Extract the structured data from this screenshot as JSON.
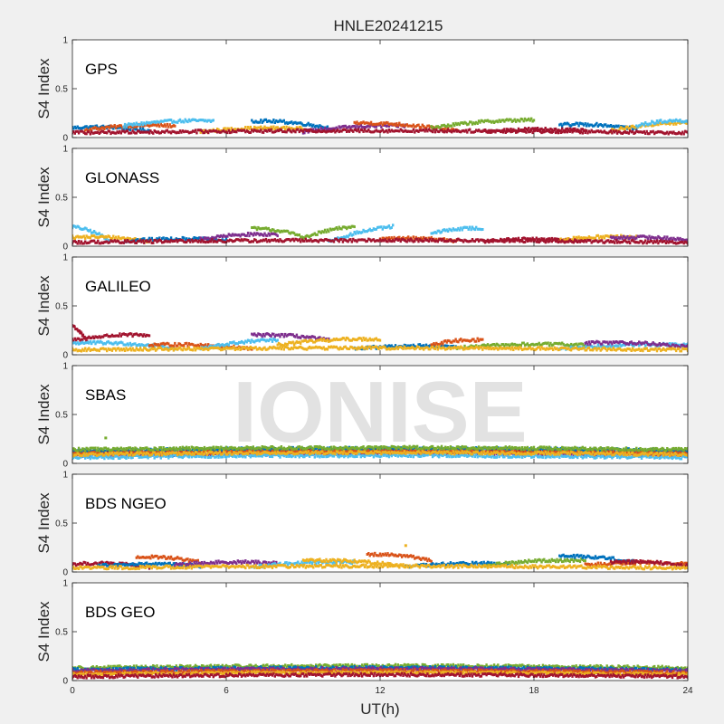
{
  "figure": {
    "title": "HNLE20241215",
    "watermark": "IONISE",
    "xlabel": "UT(h)",
    "background": "#f0f0f0",
    "axes_background": "#ffffff",
    "series_colors": [
      "#0072BD",
      "#D95319",
      "#EDB120",
      "#7E2F8E",
      "#77AC30",
      "#4DBEEE",
      "#A2142F"
    ]
  },
  "chart_data": [
    {
      "type": "scatter",
      "label": "GPS",
      "ylabel": "S4 Index",
      "xlim": [
        0,
        24
      ],
      "ylim": [
        0,
        1
      ],
      "xticks": [
        0,
        6,
        12,
        18,
        24
      ],
      "yticks": [
        0,
        0.5,
        1
      ],
      "grid": false,
      "segments": [
        {
          "x0": 0,
          "x1": 3,
          "y0": 0.1,
          "y1": 0.07,
          "color": 0
        },
        {
          "x0": 0.5,
          "x1": 4,
          "y0": 0.08,
          "y1": 0.12,
          "color": 1
        },
        {
          "x0": 2,
          "x1": 5.5,
          "y0": 0.12,
          "y1": 0.17,
          "color": 5
        },
        {
          "x0": 5,
          "x1": 9,
          "y0": 0.06,
          "y1": 0.09,
          "color": 2
        },
        {
          "x0": 7,
          "x1": 10,
          "y0": 0.17,
          "y1": 0.1,
          "color": 0
        },
        {
          "x0": 9,
          "x1": 13,
          "y0": 0.06,
          "y1": 0.12,
          "color": 3
        },
        {
          "x0": 11,
          "x1": 15,
          "y0": 0.15,
          "y1": 0.07,
          "color": 1
        },
        {
          "x0": 14,
          "x1": 18,
          "y0": 0.1,
          "y1": 0.18,
          "color": 4
        },
        {
          "x0": 16,
          "x1": 20,
          "y0": 0.06,
          "y1": 0.07,
          "color": 6
        },
        {
          "x0": 19,
          "x1": 22,
          "y0": 0.13,
          "y1": 0.09,
          "color": 0
        },
        {
          "x0": 21,
          "x1": 24,
          "y0": 0.07,
          "y1": 0.15,
          "color": 2
        },
        {
          "x0": 22,
          "x1": 24,
          "y0": 0.12,
          "y1": 0.17,
          "color": 5
        },
        {
          "x0": 0,
          "x1": 24,
          "y0": 0.05,
          "y1": 0.05,
          "color": 6
        }
      ]
    },
    {
      "type": "scatter",
      "label": "GLONASS",
      "ylabel": "S4 Index",
      "xlim": [
        0,
        24
      ],
      "ylim": [
        0,
        1
      ],
      "xticks": [
        0,
        6,
        12,
        18,
        24
      ],
      "yticks": [
        0,
        0.5,
        1
      ],
      "grid": false,
      "segments": [
        {
          "x0": 0,
          "x1": 1.5,
          "y0": 0.2,
          "y1": 0.06,
          "color": 5
        },
        {
          "x0": 0,
          "x1": 3,
          "y0": 0.09,
          "y1": 0.05,
          "color": 2
        },
        {
          "x0": 2,
          "x1": 6,
          "y0": 0.05,
          "y1": 0.06,
          "color": 0
        },
        {
          "x0": 5,
          "x1": 8,
          "y0": 0.07,
          "y1": 0.12,
          "color": 3
        },
        {
          "x0": 7,
          "x1": 9,
          "y0": 0.18,
          "y1": 0.1,
          "color": 4
        },
        {
          "x0": 9,
          "x1": 11,
          "y0": 0.08,
          "y1": 0.2,
          "color": 4
        },
        {
          "x0": 10,
          "x1": 12.5,
          "y0": 0.05,
          "y1": 0.2,
          "color": 5
        },
        {
          "x0": 12,
          "x1": 15,
          "y0": 0.07,
          "y1": 0.05,
          "color": 1
        },
        {
          "x0": 14,
          "x1": 16,
          "y0": 0.13,
          "y1": 0.18,
          "color": 5
        },
        {
          "x0": 16,
          "x1": 20,
          "y0": 0.05,
          "y1": 0.05,
          "color": 6
        },
        {
          "x0": 19,
          "x1": 22,
          "y0": 0.06,
          "y1": 0.09,
          "color": 2
        },
        {
          "x0": 21,
          "x1": 24,
          "y0": 0.08,
          "y1": 0.06,
          "color": 3
        },
        {
          "x0": 0,
          "x1": 24,
          "y0": 0.04,
          "y1": 0.04,
          "color": 6
        }
      ]
    },
    {
      "type": "scatter",
      "label": "GALILEO",
      "ylabel": "S4 Index",
      "xlim": [
        0,
        24
      ],
      "ylim": [
        0,
        1
      ],
      "xticks": [
        0,
        6,
        12,
        18,
        24
      ],
      "yticks": [
        0,
        0.5,
        1
      ],
      "grid": false,
      "segments": [
        {
          "x0": 0,
          "x1": 0.6,
          "y0": 0.3,
          "y1": 0.12,
          "color": 6
        },
        {
          "x0": 0,
          "x1": 3,
          "y0": 0.15,
          "y1": 0.2,
          "color": 6
        },
        {
          "x0": 0,
          "x1": 4,
          "y0": 0.12,
          "y1": 0.07,
          "color": 5
        },
        {
          "x0": 3,
          "x1": 7,
          "y0": 0.1,
          "y1": 0.06,
          "color": 1
        },
        {
          "x0": 5,
          "x1": 8,
          "y0": 0.06,
          "y1": 0.15,
          "color": 5
        },
        {
          "x0": 7,
          "x1": 10,
          "y0": 0.2,
          "y1": 0.15,
          "color": 3
        },
        {
          "x0": 8,
          "x1": 12,
          "y0": 0.1,
          "y1": 0.16,
          "color": 2
        },
        {
          "x0": 11,
          "x1": 15,
          "y0": 0.06,
          "y1": 0.08,
          "color": 0
        },
        {
          "x0": 14,
          "x1": 16,
          "y0": 0.1,
          "y1": 0.15,
          "color": 1
        },
        {
          "x0": 15,
          "x1": 20,
          "y0": 0.07,
          "y1": 0.1,
          "color": 4
        },
        {
          "x0": 19,
          "x1": 24,
          "y0": 0.06,
          "y1": 0.1,
          "color": 5
        },
        {
          "x0": 20,
          "x1": 24,
          "y0": 0.12,
          "y1": 0.08,
          "color": 3
        },
        {
          "x0": 0,
          "x1": 24,
          "y0": 0.05,
          "y1": 0.05,
          "color": 2
        }
      ]
    },
    {
      "type": "scatter",
      "label": "SBAS",
      "ylabel": "S4 Index",
      "xlim": [
        0,
        24
      ],
      "ylim": [
        0,
        1
      ],
      "xticks": [
        0,
        6,
        12,
        18,
        24
      ],
      "yticks": [
        0,
        0.5,
        1
      ],
      "grid": false,
      "segments": [
        {
          "x0": 0,
          "x1": 24,
          "y0": 0.11,
          "y1": 0.11,
          "color": 6
        },
        {
          "x0": 0,
          "x1": 24,
          "y0": 0.08,
          "y1": 0.08,
          "color": 3
        },
        {
          "x0": 0,
          "x1": 24,
          "y0": 0.13,
          "y1": 0.13,
          "color": 0
        },
        {
          "x0": 0,
          "x1": 24,
          "y0": 0.1,
          "y1": 0.1,
          "color": 1
        },
        {
          "x0": 0,
          "x1": 24,
          "y0": 0.06,
          "y1": 0.06,
          "color": 5
        },
        {
          "x0": 0,
          "x1": 24,
          "y0": 0.14,
          "y1": 0.14,
          "color": 4
        },
        {
          "x0": 0,
          "x1": 24,
          "y0": 0.09,
          "y1": 0.09,
          "color": 2
        }
      ],
      "points": [
        {
          "x": 1.3,
          "y": 0.26,
          "color": 4
        }
      ]
    },
    {
      "type": "scatter",
      "label": "BDS NGEO",
      "ylabel": "S4 Index",
      "xlim": [
        0,
        24
      ],
      "ylim": [
        0,
        1
      ],
      "xticks": [
        0,
        6,
        12,
        18,
        24
      ],
      "yticks": [
        0,
        0.5,
        1
      ],
      "grid": false,
      "segments": [
        {
          "x0": 0,
          "x1": 3,
          "y0": 0.08,
          "y1": 0.05,
          "color": 6
        },
        {
          "x0": 1,
          "x1": 5,
          "y0": 0.06,
          "y1": 0.06,
          "color": 0
        },
        {
          "x0": 2.5,
          "x1": 5,
          "y0": 0.15,
          "y1": 0.1,
          "color": 1
        },
        {
          "x0": 4,
          "x1": 8,
          "y0": 0.07,
          "y1": 0.09,
          "color": 3
        },
        {
          "x0": 7,
          "x1": 11,
          "y0": 0.05,
          "y1": 0.1,
          "color": 5
        },
        {
          "x0": 9,
          "x1": 13,
          "y0": 0.12,
          "y1": 0.06,
          "color": 2
        },
        {
          "x0": 11.5,
          "x1": 14,
          "y0": 0.18,
          "y1": 0.12,
          "color": 1
        },
        {
          "x0": 13,
          "x1": 17,
          "y0": 0.05,
          "y1": 0.08,
          "color": 0
        },
        {
          "x0": 16,
          "x1": 20,
          "y0": 0.06,
          "y1": 0.12,
          "color": 4
        },
        {
          "x0": 19,
          "x1": 22,
          "y0": 0.16,
          "y1": 0.1,
          "color": 0
        },
        {
          "x0": 20,
          "x1": 24,
          "y0": 0.07,
          "y1": 0.08,
          "color": 1
        },
        {
          "x0": 21,
          "x1": 24,
          "y0": 0.1,
          "y1": 0.06,
          "color": 6
        },
        {
          "x0": 0,
          "x1": 24,
          "y0": 0.04,
          "y1": 0.04,
          "color": 2
        }
      ],
      "points": [
        {
          "x": 13,
          "y": 0.27,
          "color": 2
        }
      ]
    },
    {
      "type": "scatter",
      "label": "BDS GEO",
      "ylabel": "S4 Index",
      "xlim": [
        0,
        24
      ],
      "ylim": [
        0,
        1
      ],
      "xticks": [
        0,
        6,
        12,
        18,
        24
      ],
      "yticks": [
        0,
        0.5,
        1
      ],
      "grid": false,
      "segments": [
        {
          "x0": 0,
          "x1": 24,
          "y0": 0.13,
          "y1": 0.13,
          "color": 4
        },
        {
          "x0": 0,
          "x1": 24,
          "y0": 0.11,
          "y1": 0.11,
          "color": 0
        },
        {
          "x0": 0,
          "x1": 24,
          "y0": 0.1,
          "y1": 0.1,
          "color": 3
        },
        {
          "x0": 0,
          "x1": 24,
          "y0": 0.08,
          "y1": 0.08,
          "color": 1
        },
        {
          "x0": 0,
          "x1": 24,
          "y0": 0.06,
          "y1": 0.06,
          "color": 2
        },
        {
          "x0": 0,
          "x1": 24,
          "y0": 0.04,
          "y1": 0.04,
          "color": 6
        }
      ]
    }
  ]
}
